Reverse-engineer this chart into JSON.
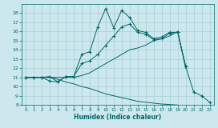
{
  "xlabel": "Humidex (Indice chaleur)",
  "background_color": "#cce8ee",
  "line_color": "#006868",
  "grid_color": "#a8ccd4",
  "xlim": [
    -0.5,
    23.5
  ],
  "ylim": [
    8,
    19
  ],
  "xticks": [
    0,
    1,
    2,
    3,
    4,
    5,
    6,
    7,
    8,
    9,
    10,
    11,
    12,
    13,
    14,
    15,
    16,
    17,
    18,
    19,
    20,
    21,
    22,
    23
  ],
  "yticks": [
    8,
    9,
    10,
    11,
    12,
    13,
    14,
    15,
    16,
    17,
    18
  ],
  "lines": [
    {
      "x": [
        0,
        1,
        2,
        3,
        4,
        5,
        6,
        7,
        8,
        9,
        10,
        11,
        12,
        13,
        14,
        15,
        16,
        17,
        18,
        19,
        20,
        21,
        22,
        23
      ],
      "y": [
        11,
        11,
        11,
        10.6,
        10.5,
        11.1,
        11.1,
        13.5,
        13.8,
        16.5,
        18.5,
        16.4,
        18.3,
        17.5,
        16.1,
        15.9,
        15.2,
        15.4,
        15.9,
        15.9,
        12.2,
        9.4,
        9.0,
        8.3
      ],
      "marker": true
    },
    {
      "x": [
        0,
        1,
        2,
        3,
        4,
        5,
        6,
        7,
        8,
        9,
        10,
        11,
        12,
        13,
        14,
        15,
        16,
        17,
        18,
        19,
        20,
        21,
        22,
        23
      ],
      "y": [
        11,
        11,
        11,
        11.1,
        10.5,
        11.1,
        11.1,
        12.5,
        12.8,
        13.5,
        14.5,
        15.5,
        16.5,
        16.8,
        15.9,
        15.7,
        15.1,
        15.2,
        15.8,
        15.9,
        12.2,
        null,
        null,
        null
      ],
      "marker": true
    },
    {
      "x": [
        0,
        1,
        2,
        3,
        4,
        5,
        6,
        7,
        8,
        9,
        10,
        11,
        12,
        13,
        14,
        15,
        16,
        17,
        18,
        19,
        20,
        21,
        22,
        23
      ],
      "y": [
        11,
        11,
        11,
        11,
        11,
        11,
        11,
        11.2,
        11.5,
        12,
        12.5,
        13,
        13.5,
        14,
        14.2,
        14.5,
        15,
        15.2,
        15.5,
        16,
        12,
        null,
        null,
        null
      ],
      "marker": false
    },
    {
      "x": [
        0,
        1,
        2,
        3,
        4,
        5,
        6,
        7,
        8,
        9,
        10,
        11,
        12,
        13,
        14,
        15,
        16,
        17,
        18,
        19,
        20,
        21,
        22,
        23
      ],
      "y": [
        11,
        11,
        11,
        11,
        10.8,
        10.5,
        10.3,
        10,
        9.8,
        9.5,
        9.2,
        9.0,
        8.8,
        8.6,
        8.4,
        8.3,
        8.2,
        8.1,
        8.05,
        8.0,
        null,
        null,
        null,
        null
      ],
      "marker": false
    }
  ]
}
